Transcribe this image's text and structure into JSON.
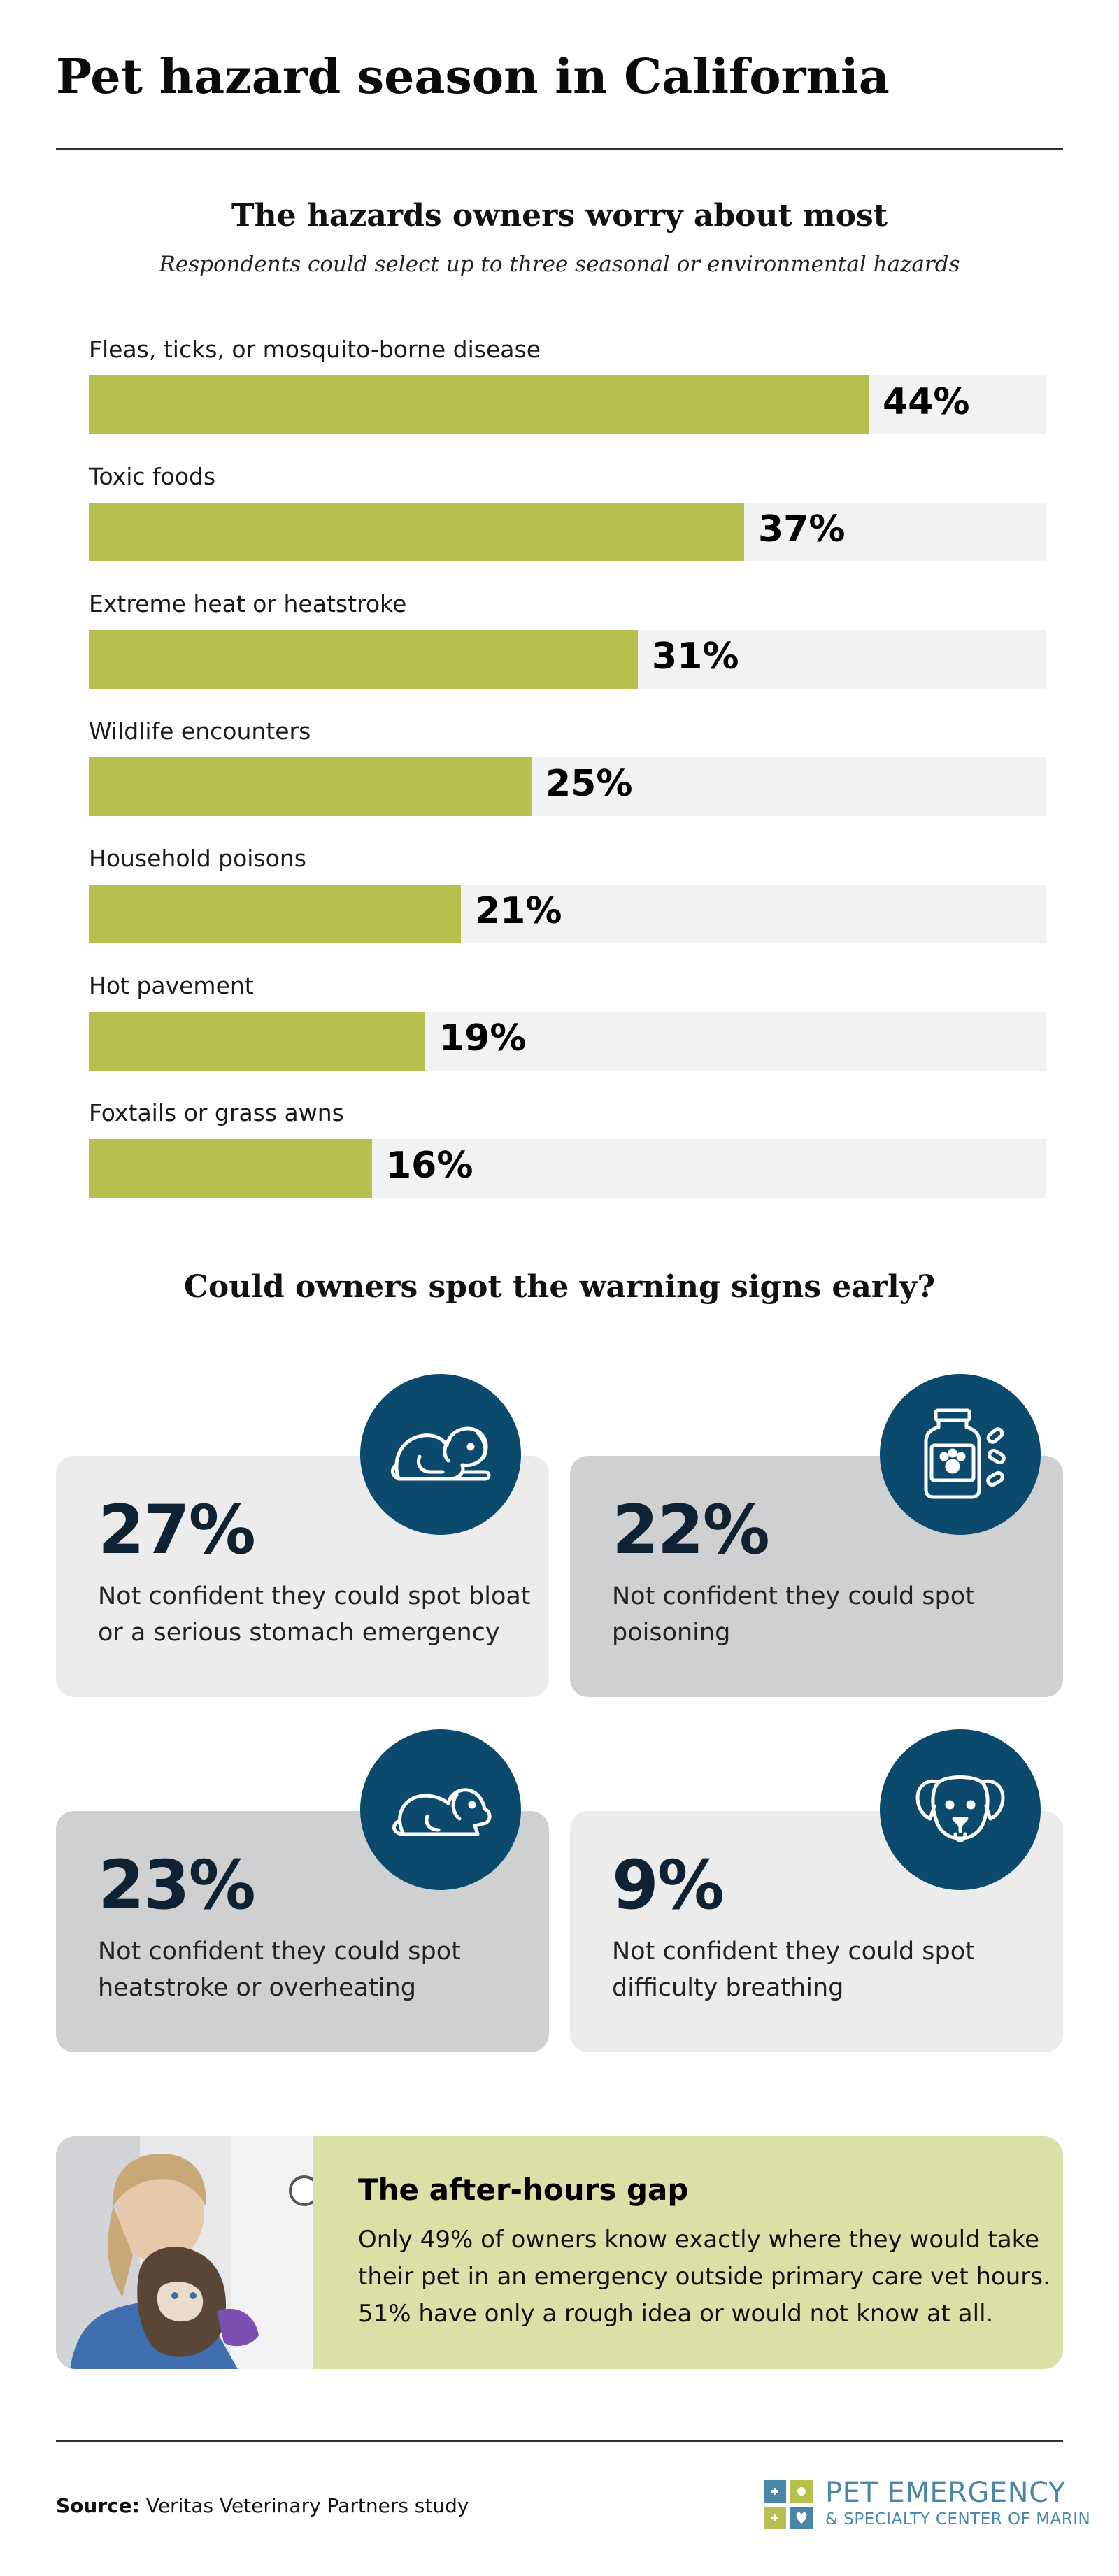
{
  "page": {
    "title": "Pet hazard season in California"
  },
  "chart_data": {
    "type": "bar",
    "orientation": "horizontal",
    "title": "The hazards owners worry about most",
    "subtitle": "Respondents could select up to three seasonal or environmental hazards",
    "categories": [
      "Fleas, ticks, or mosquito-borne disease",
      "Toxic foods",
      "Extreme heat or heatstroke",
      "Wildlife encounters",
      "Household poisons",
      "Hot pavement",
      "Foxtails or grass awns"
    ],
    "values": [
      44,
      37,
      31,
      25,
      21,
      19,
      16
    ],
    "value_labels": [
      "44%",
      "37%",
      "31%",
      "25%",
      "21%",
      "19%",
      "16%"
    ],
    "xlim": [
      0,
      54
    ],
    "unit": "%",
    "bar_color": "#b7c04f",
    "track_color": "#f1f2f4",
    "grid": false,
    "legend": "none"
  },
  "signs": {
    "title": "Could owners spot the warning signs early?",
    "cards": [
      {
        "value": "27%",
        "text": "Not confident they could spot bloat or a serious stomach emergency",
        "icon": "dog-lying-icon",
        "shade": "light"
      },
      {
        "value": "22%",
        "text": "Not confident they could spot poisoning",
        "icon": "medicine-bottle-icon",
        "shade": "dark"
      },
      {
        "value": "23%",
        "text": "Not confident they could spot heatstroke or overheating",
        "icon": "dog-resting-icon",
        "shade": "dark"
      },
      {
        "value": "9%",
        "text": "Not confident they could spot difficulty breathing",
        "icon": "dog-face-icon",
        "shade": "light"
      }
    ],
    "icon_circle_color": "#0b4a6c"
  },
  "gap": {
    "title": "The after-hours gap",
    "text": "Only 49% of owners know exactly where they would take their pet in an emergency outside primary care vet hours. 51% have only a rough idea or would not know at all.",
    "photo": "vet-holding-cat-photo",
    "background": "#dbe0a6"
  },
  "footer": {
    "source_label": "Source:",
    "source_text": "Veritas Veterinary Partners study",
    "logo_line1": "PET EMERGENCY",
    "logo_line2": "& SPECIALTY CENTER OF MARIN",
    "logo_color": "#4a87a7"
  }
}
